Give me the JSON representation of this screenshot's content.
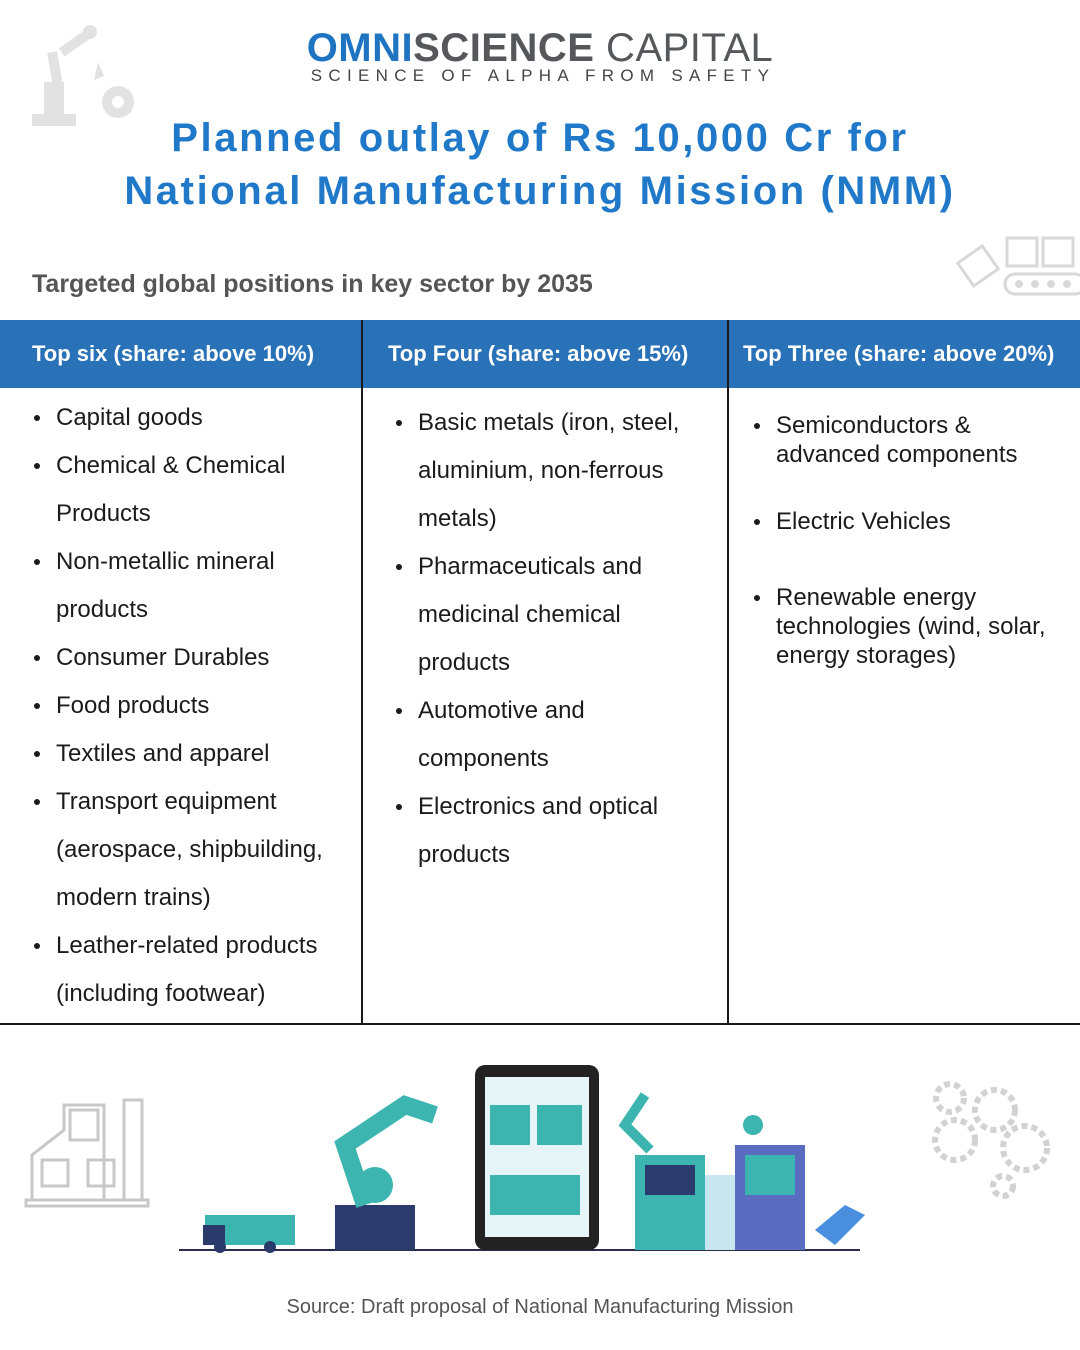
{
  "logo": {
    "word1": "OMNI",
    "word2": "SCIENCE",
    "word3": " CAPITAL",
    "tagline": "SCIENCE OF ALPHA FROM SAFETY"
  },
  "title": {
    "line1": "Planned outlay of Rs 10,000 Cr for",
    "line2": "National Manufacturing Mission (NMM)"
  },
  "subtitle": "Targeted global positions in key sector by 2035",
  "colors": {
    "header_blue": "#2a72b8",
    "title_blue": "#1f78c8",
    "logo_blue": "#1f74c2"
  },
  "columns": [
    {
      "header": "Top six (share: above 10%)",
      "items": [
        "Capital goods",
        "Chemical & Chemical Products",
        "Non-metallic mineral products",
        "Consumer Durables",
        "Food products",
        "Textiles and apparel",
        "Transport equipment (aerospace, shipbuilding, modern trains)",
        "Leather-related products (including footwear)"
      ]
    },
    {
      "header": "Top Four (share: above 15%)",
      "items": [
        "Basic metals (iron, steel, aluminium, non-ferrous metals)",
        "Pharmaceuticals and medicinal chemical products",
        "Automotive and components",
        "Electronics and optical products"
      ]
    },
    {
      "header": "Top Three (share: above 20%)",
      "items": [
        "Semiconductors & advanced components",
        "Electric Vehicles",
        "Renewable energy technologies (wind, solar, energy storages)"
      ]
    }
  ],
  "source": "Source: Draft proposal of National Manufacturing Mission"
}
